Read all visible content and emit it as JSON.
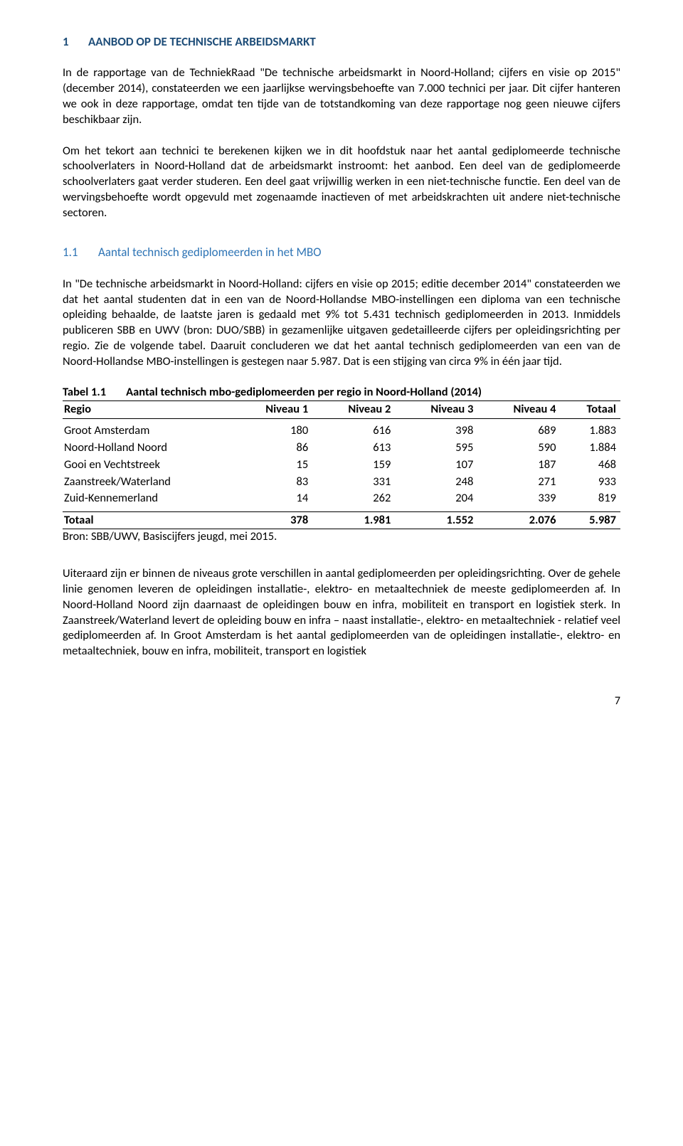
{
  "heading1": {
    "num": "1",
    "text": "AANBOD OP DE TECHNISCHE ARBEIDSMARKT"
  },
  "p1": "In de rapportage van de TechniekRaad \"De technische arbeidsmarkt in Noord-Holland; cijfers en visie op 2015\"(december 2014), constateerden we een jaarlijkse wervingsbehoefte van 7.000 technici per jaar. Dit cijfer hanteren we ook in deze rapportage, omdat ten tijde van de totstandkoming van deze rapportage nog geen nieuwe cijfers beschikbaar zijn.",
  "p2": "Om het tekort aan technici te berekenen kijken we in dit hoofdstuk naar het aantal gediplomeerde technische schoolverlaters in Noord-Holland dat de arbeidsmarkt instroomt: het aanbod. Een deel van de gediplomeerde schoolverlaters gaat verder studeren. Een deel gaat vrijwillig werken in een niet-technische functie. Een deel van de wervingsbehoefte wordt opgevuld met zogenaamde inactieven of met arbeidskrachten uit andere niet-technische sectoren.",
  "heading2": {
    "num": "1.1",
    "text": "Aantal technisch gediplomeerden in het MBO"
  },
  "p3": "In \"De technische arbeidsmarkt in Noord-Holland: cijfers en visie op 2015; editie december 2014\" constateerden we dat het aantal studenten dat in een van de Noord-Hollandse MBO-instellingen een diploma van een technische opleiding behaalde, de laatste jaren is gedaald met 9% tot 5.431 technisch gediplomeerden in 2013. Inmiddels publiceren SBB en UWV (bron: DUO/SBB) in gezamenlijke uitgaven gedetailleerde cijfers per opleidingsrichting per regio. Zie de volgende tabel. Daaruit concluderen we dat het aantal technisch gediplomeerden van een van de Noord-Hollandse MBO-instellingen is gestegen naar 5.987. Dat is een stijging van circa 9% in één jaar tijd.",
  "table": {
    "label": "Tabel 1.1",
    "title": "Aantal technisch mbo-gediplomeerden per regio in Noord-Holland (2014)",
    "columns": [
      "Regio",
      "Niveau 1",
      "Niveau 2",
      "Niveau 3",
      "Niveau 4",
      "Totaal"
    ],
    "rows": [
      [
        "Groot Amsterdam",
        "180",
        "616",
        "398",
        "689",
        "1.883"
      ],
      [
        "Noord-Holland Noord",
        "86",
        "613",
        "595",
        "590",
        "1.884"
      ],
      [
        "Gooi en Vechtstreek",
        "15",
        "159",
        "107",
        "187",
        "468"
      ],
      [
        "Zaanstreek/Waterland",
        "83",
        "331",
        "248",
        "271",
        "933"
      ],
      [
        "Zuid-Kennemerland",
        "14",
        "262",
        "204",
        "339",
        "819"
      ]
    ],
    "totals": [
      "Totaal",
      "378",
      "1.981",
      "1.552",
      "2.076",
      "5.987"
    ],
    "source": "Bron: SBB/UWV, Basiscijfers jeugd, mei 2015."
  },
  "p4": "Uiteraard zijn er binnen de niveaus grote verschillen in aantal gediplomeerden per opleidingsrichting. Over de gehele linie genomen leveren de opleidingen installatie-, elektro- en metaaltechniek de meeste gediplomeerden af. In Noord-Holland Noord zijn daarnaast de opleidingen bouw en infra, mobiliteit en transport en logistiek sterk. In Zaanstreek/Waterland levert de opleiding bouw en infra – naast installatie-, elektro- en metaaltechniek - relatief veel gediplomeerden af. In Groot Amsterdam is het aantal gediplomeerden van de opleidingen installatie-, elektro- en metaaltechniek, bouw en infra, mobiliteit, transport en logistiek",
  "pageNumber": "7"
}
